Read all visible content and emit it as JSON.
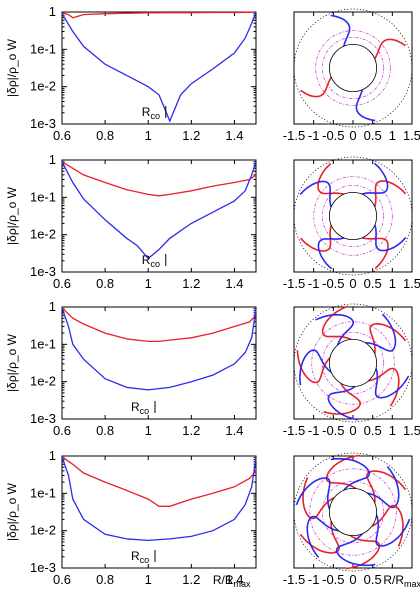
{
  "chart_data": {
    "type": "figure",
    "ylabel": "|δρ|/ρ_o W",
    "rmax_label": "R/R",
    "rmax_sub": "max",
    "colors": {
      "red": "#e8202a",
      "blue": "#2b2bf0",
      "magenta": "#d04ad0",
      "black": "#000000"
    },
    "left_panels": {
      "type": "line",
      "x_ticks": [
        "0.6",
        "0.8",
        "1",
        "1.2",
        "1.4"
      ],
      "y_ticks": [
        "1",
        "1e-1",
        "1e-2",
        "1e-3"
      ],
      "xlim": [
        0.6,
        1.5
      ],
      "ylim_log10": [
        -3,
        0
      ],
      "panels": [
        {
          "marker_label": "R",
          "marker_sub": "co",
          "marker_x": 1.1,
          "series": [
            {
              "color": "red",
              "x": [
                0.6,
                0.63,
                0.65,
                0.7,
                0.8,
                0.9,
                1.0,
                1.1,
                1.2,
                1.3,
                1.4,
                1.46,
                1.49
              ],
              "y": [
                0.95,
                0.85,
                0.7,
                0.85,
                0.9,
                0.93,
                0.95,
                0.96,
                0.96,
                0.97,
                0.97,
                0.98,
                0.99
              ]
            },
            {
              "color": "blue",
              "x": [
                0.6,
                0.65,
                0.7,
                0.8,
                0.9,
                1.0,
                1.05,
                1.1,
                1.15,
                1.2,
                1.3,
                1.4,
                1.45,
                1.48,
                1.5
              ],
              "y": [
                0.9,
                0.3,
                0.12,
                0.04,
                0.02,
                0.01,
                0.006,
                0.0012,
                0.006,
                0.012,
                0.03,
                0.08,
                0.2,
                0.5,
                1.0
              ]
            }
          ]
        },
        {
          "marker_label": "R",
          "marker_sub": "co",
          "marker_x": 1.1,
          "series": [
            {
              "color": "red",
              "x": [
                0.6,
                0.65,
                0.7,
                0.8,
                0.9,
                1.0,
                1.05,
                1.1,
                1.2,
                1.3,
                1.4,
                1.47,
                1.5
              ],
              "y": [
                0.9,
                0.6,
                0.4,
                0.25,
                0.16,
                0.12,
                0.11,
                0.12,
                0.15,
                0.2,
                0.25,
                0.3,
                0.4
              ]
            },
            {
              "color": "blue",
              "x": [
                0.6,
                0.65,
                0.7,
                0.8,
                0.9,
                0.95,
                1.0,
                1.05,
                1.1,
                1.2,
                1.3,
                1.4,
                1.45,
                1.48,
                1.5
              ],
              "y": [
                0.9,
                0.25,
                0.09,
                0.025,
                0.008,
                0.005,
                0.0023,
                0.004,
                0.008,
                0.02,
                0.04,
                0.08,
                0.15,
                0.4,
                0.9
              ]
            }
          ]
        },
        {
          "marker_label": "R",
          "marker_sub": "co",
          "marker_x": 1.05,
          "series": [
            {
              "color": "red",
              "x": [
                0.6,
                0.65,
                0.7,
                0.8,
                0.9,
                1.0,
                1.05,
                1.1,
                1.2,
                1.3,
                1.4,
                1.47,
                1.5
              ],
              "y": [
                0.95,
                0.5,
                0.35,
                0.2,
                0.14,
                0.12,
                0.12,
                0.13,
                0.15,
                0.2,
                0.3,
                0.4,
                0.6
              ]
            },
            {
              "color": "blue",
              "x": [
                0.6,
                0.63,
                0.65,
                0.7,
                0.8,
                0.9,
                1.0,
                1.1,
                1.2,
                1.3,
                1.4,
                1.45,
                1.48,
                1.5
              ],
              "y": [
                0.95,
                0.3,
                0.1,
                0.04,
                0.012,
                0.007,
                0.006,
                0.007,
                0.01,
                0.015,
                0.03,
                0.06,
                0.15,
                0.9
              ]
            }
          ]
        },
        {
          "marker_label": "R",
          "marker_sub": "co",
          "marker_x": 1.05,
          "series": [
            {
              "color": "red",
              "x": [
                0.6,
                0.65,
                0.7,
                0.8,
                0.9,
                1.0,
                1.05,
                1.1,
                1.2,
                1.3,
                1.4,
                1.47,
                1.5
              ],
              "y": [
                0.95,
                0.6,
                0.35,
                0.2,
                0.12,
                0.07,
                0.045,
                0.045,
                0.07,
                0.1,
                0.15,
                0.25,
                0.4
              ]
            },
            {
              "color": "blue",
              "x": [
                0.6,
                0.63,
                0.65,
                0.7,
                0.8,
                0.9,
                1.0,
                1.1,
                1.2,
                1.3,
                1.4,
                1.45,
                1.48,
                1.5
              ],
              "y": [
                0.95,
                0.3,
                0.07,
                0.02,
                0.008,
                0.006,
                0.0055,
                0.006,
                0.007,
                0.01,
                0.02,
                0.05,
                0.15,
                0.9
              ]
            }
          ]
        }
      ]
    },
    "right_panels": {
      "type": "polar-map",
      "x_ticks": [
        "-1.5",
        "-1",
        "-0.5",
        "0",
        "0.5",
        "1",
        "1.5"
      ],
      "last_xlabel": "R/R",
      "last_xlabel_sub": "max",
      "xlim": [
        -1.5,
        1.5
      ],
      "disk_radius": 0.6,
      "outer_dotted_radius": 1.5,
      "panels": [
        {
          "arms": 2,
          "twist": 0.35,
          "magenta_radii": [
            0.78,
            0.95
          ]
        },
        {
          "arms": 4,
          "twist": 0.6,
          "magenta_radii": [
            0.78,
            1.0
          ]
        },
        {
          "arms": 5,
          "twist": 0.8,
          "magenta_radii": [
            0.78,
            1.05
          ]
        },
        {
          "arms": 6,
          "twist": 0.9,
          "magenta_radii": [
            0.78,
            1.1
          ]
        }
      ]
    }
  }
}
